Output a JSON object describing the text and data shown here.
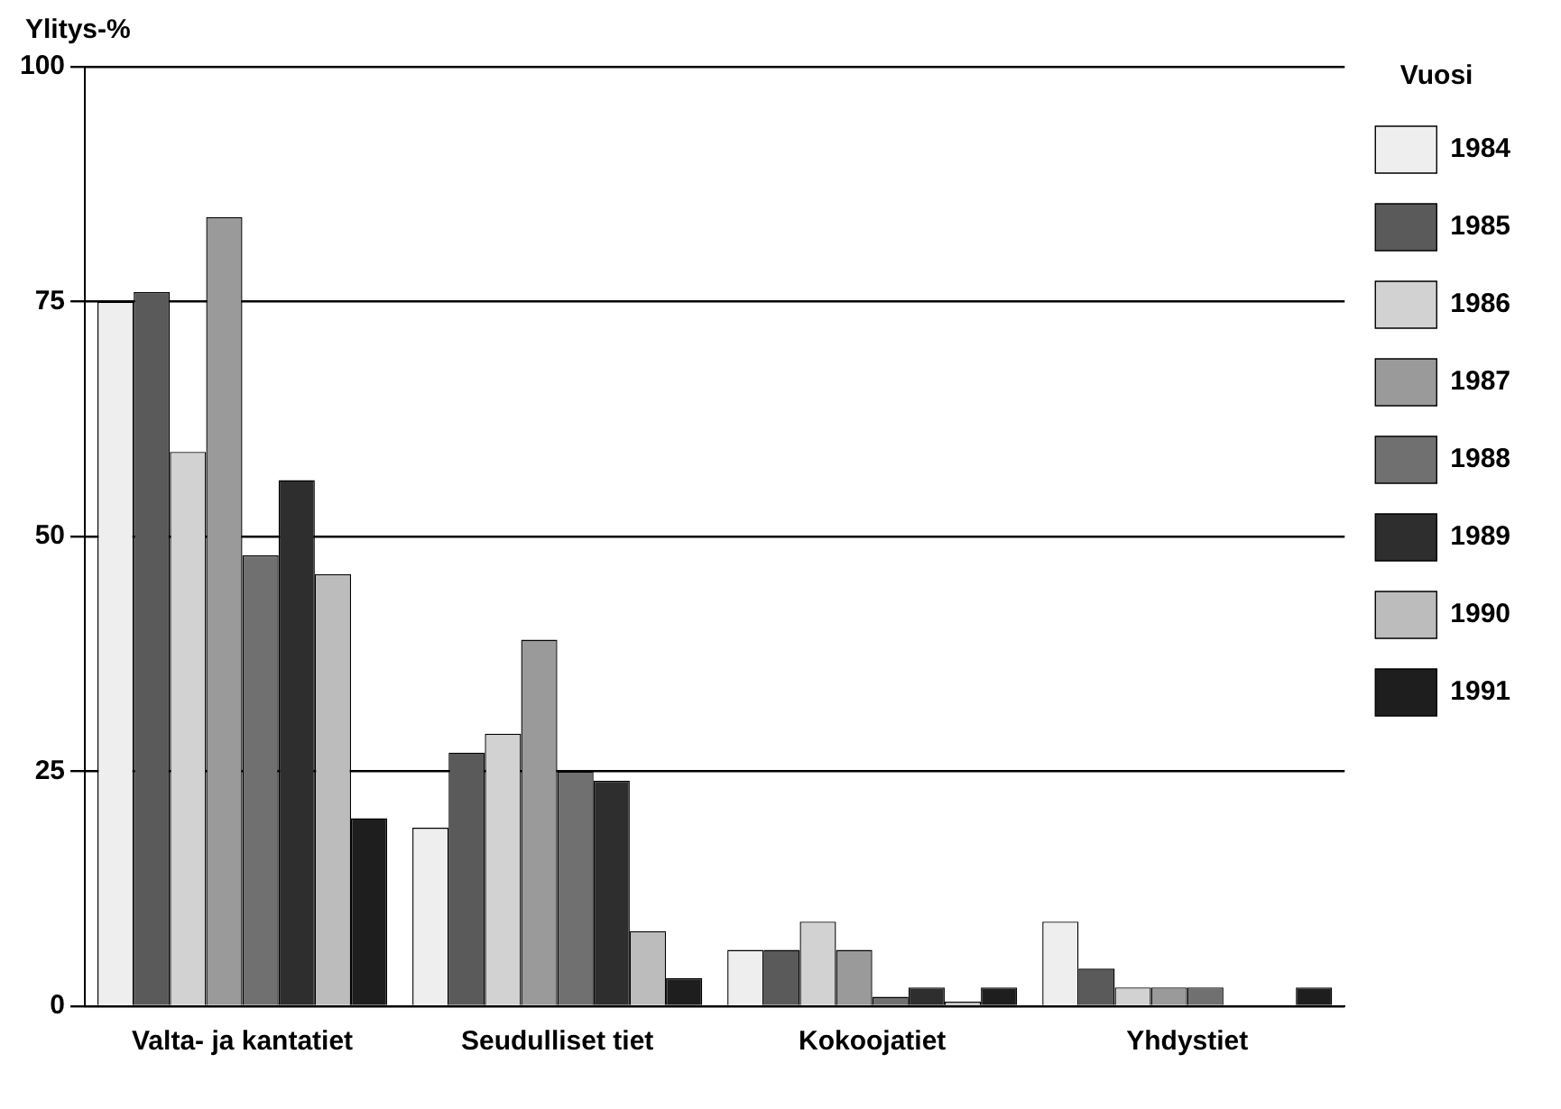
{
  "chart_data": {
    "type": "bar",
    "ylabel": "Ylitys-%",
    "legend_title": "Vuosi",
    "categories": [
      "Valta- ja kantatiet",
      "Seudulliset tiet",
      "Kokoojatiet",
      "Yhdystiet"
    ],
    "series": [
      {
        "name": "1984",
        "color": "#eeeeee",
        "values": [
          75,
          19,
          6,
          9
        ]
      },
      {
        "name": "1985",
        "color": "#5a5a5a",
        "values": [
          76,
          27,
          6,
          4
        ]
      },
      {
        "name": "1986",
        "color": "#d2d2d2",
        "values": [
          59,
          29,
          9,
          2
        ]
      },
      {
        "name": "1987",
        "color": "#9a9a9a",
        "values": [
          84,
          39,
          6,
          2
        ]
      },
      {
        "name": "1988",
        "color": "#707070",
        "values": [
          48,
          25,
          1,
          2
        ]
      },
      {
        "name": "1989",
        "color": "#2e2e2e",
        "values": [
          56,
          24,
          2,
          0
        ]
      },
      {
        "name": "1990",
        "color": "#bcbcbc",
        "values": [
          46,
          8,
          0.5,
          0
        ]
      },
      {
        "name": "1991",
        "color": "#1e1e1e",
        "values": [
          20,
          3,
          2,
          2
        ]
      }
    ],
    "ylim": [
      0,
      100
    ],
    "yticks": [
      0,
      25,
      50,
      75,
      100
    ],
    "grid": "y",
    "legend": "right"
  }
}
